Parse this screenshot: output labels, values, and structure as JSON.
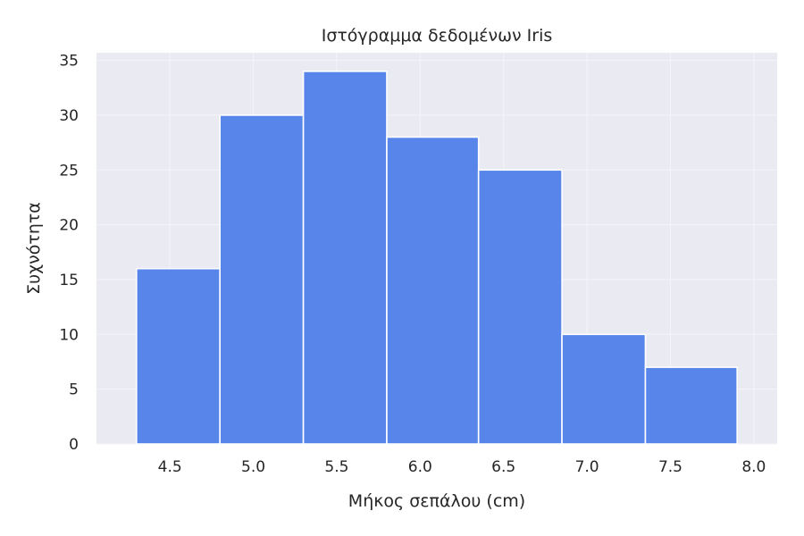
{
  "chart_data": {
    "type": "bar",
    "subtype": "histogram",
    "title": "Ιστόγραμμα δεδομένων Iris",
    "xlabel": "Μήκος σεπάλου (cm)",
    "ylabel": "Συχνότητα",
    "bin_edges": [
      4.3,
      4.8,
      5.3,
      5.8,
      6.35,
      6.85,
      7.35,
      7.9
    ],
    "values": [
      16,
      30,
      34,
      28,
      25,
      10,
      7
    ],
    "xlim": [
      4.06,
      8.14
    ],
    "ylim": [
      0,
      35.7
    ],
    "xticks": [
      "4.5",
      "5.0",
      "5.5",
      "6.0",
      "6.5",
      "7.0",
      "7.5",
      "8.0"
    ],
    "xtick_values": [
      4.5,
      5.0,
      5.5,
      6.0,
      6.5,
      7.0,
      7.5,
      8.0
    ],
    "yticks": [
      "0",
      "5",
      "10",
      "15",
      "20",
      "25",
      "30",
      "35"
    ],
    "ytick_values": [
      0,
      5,
      10,
      15,
      20,
      25,
      30,
      35
    ],
    "grid": true,
    "colors": {
      "bar": "#5785ea",
      "bar_edge": "#ffffff",
      "plot_background": "#eaeaf2",
      "grid": "#f4f4f8",
      "text": "#262626"
    }
  }
}
